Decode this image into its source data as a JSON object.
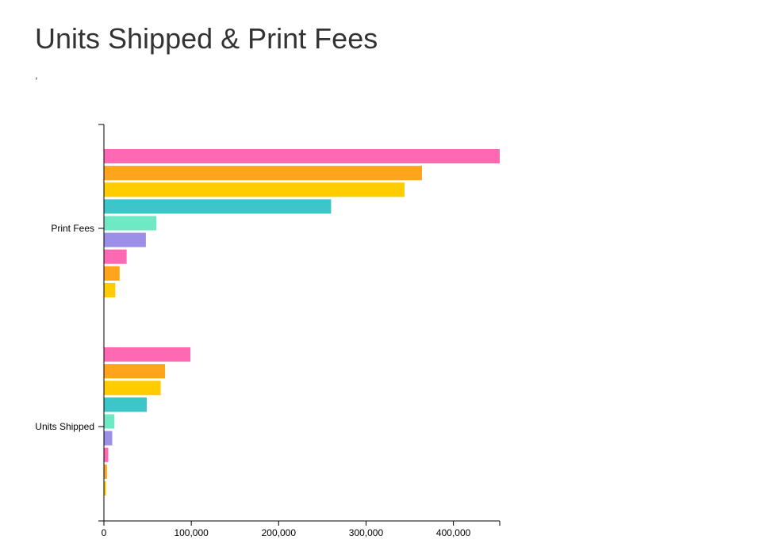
{
  "chart_data": {
    "type": "bar",
    "orientation": "horizontal",
    "title": "Units Shipped & Print Fees",
    "subtitle": ",",
    "categories": [
      "Print Fees",
      "Units Shipped"
    ],
    "series_values": [
      [
        453000,
        99000
      ],
      [
        364000,
        70000
      ],
      [
        344000,
        65000
      ],
      [
        260000,
        49000
      ],
      [
        60000,
        12000
      ],
      [
        48000,
        9500
      ],
      [
        26000,
        5000
      ],
      [
        18000,
        3500
      ],
      [
        13000,
        2500
      ]
    ],
    "series_colors": [
      "#ff69b4",
      "#ffa41c",
      "#ffcc00",
      "#3cc6c9",
      "#6fe8c4",
      "#9c8fe8",
      "#ff69b4",
      "#ffa41c",
      "#ffcc00"
    ],
    "x_ticks": [
      "0",
      "100,000",
      "200,000",
      "300,000",
      "400,000"
    ],
    "x_tick_values": [
      0,
      100000,
      200000,
      300000,
      400000
    ],
    "xlim": [
      0,
      453000
    ],
    "xlabel": "",
    "ylabel": "",
    "grid": false,
    "legend": "none"
  }
}
